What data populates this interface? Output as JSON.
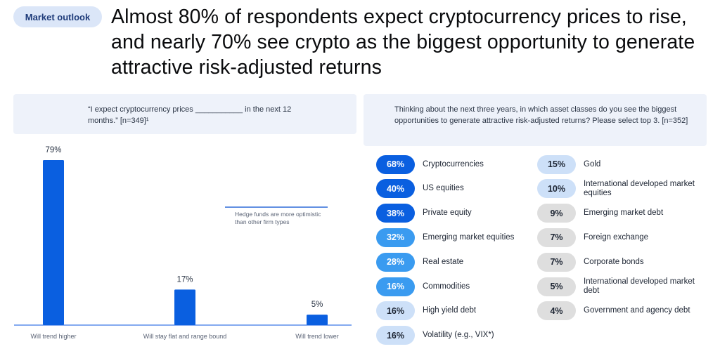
{
  "header": {
    "tag": "Market outlook",
    "headline": "Almost 80% of respondents expect cryptocurrency prices to rise, and nearly 70% see crypto as the biggest opportunity to generate attractive risk-adjusted returns"
  },
  "left_panel": {
    "question": "“I expect cryptocurrency prices ___________ in the next 12 months.” [n=349]¹",
    "annotation": "Hedge funds are more optimistic than other firm types"
  },
  "right_panel": {
    "question": "Thinking about the next three years, in which asset classes do you see the biggest opportunities to generate attractive risk-adjusted returns? Please select top 3. [n=352]"
  },
  "colors": {
    "bar": "#0a5fe0",
    "dark": "#0a5fe0",
    "medium": "#3a9bf0",
    "light": "#cde0f8",
    "gray": "#dedede"
  },
  "chart_data": [
    {
      "type": "bar",
      "categories": [
        "Will trend higher",
        "Will stay flat and range bound",
        "Will trend lower"
      ],
      "values": [
        79,
        17,
        5
      ],
      "value_labels": [
        "79%",
        "17%",
        "5%"
      ],
      "unit": "%",
      "ylim": [
        0,
        79
      ],
      "grid": false
    },
    {
      "type": "table",
      "columns": [
        [
          {
            "value": 68,
            "label": "68%",
            "name": "Cryptocurrencies",
            "tone": "dark"
          },
          {
            "value": 40,
            "label": "40%",
            "name": "US equities",
            "tone": "dark"
          },
          {
            "value": 38,
            "label": "38%",
            "name": "Private equity",
            "tone": "dark"
          },
          {
            "value": 32,
            "label": "32%",
            "name": "Emerging market equities",
            "tone": "medium"
          },
          {
            "value": 28,
            "label": "28%",
            "name": "Real estate",
            "tone": "medium"
          },
          {
            "value": 16,
            "label": "16%",
            "name": "Commodities",
            "tone": "medium"
          },
          {
            "value": 16,
            "label": "16%",
            "name": "High yield debt",
            "tone": "light"
          },
          {
            "value": 16,
            "label": "16%",
            "name": "Volatility (e.g., VIX*)",
            "tone": "light"
          }
        ],
        [
          {
            "value": 15,
            "label": "15%",
            "name": "Gold",
            "tone": "light"
          },
          {
            "value": 10,
            "label": "10%",
            "name": "International developed market equities",
            "tone": "light"
          },
          {
            "value": 9,
            "label": "9%",
            "name": "Emerging market debt",
            "tone": "gray"
          },
          {
            "value": 7,
            "label": "7%",
            "name": "Foreign exchange",
            "tone": "gray"
          },
          {
            "value": 7,
            "label": "7%",
            "name": "Corporate bonds",
            "tone": "gray"
          },
          {
            "value": 5,
            "label": "5%",
            "name": "International developed market debt",
            "tone": "gray"
          },
          {
            "value": 4,
            "label": "4%",
            "name": "Government and agency debt",
            "tone": "gray"
          }
        ]
      ]
    }
  ]
}
